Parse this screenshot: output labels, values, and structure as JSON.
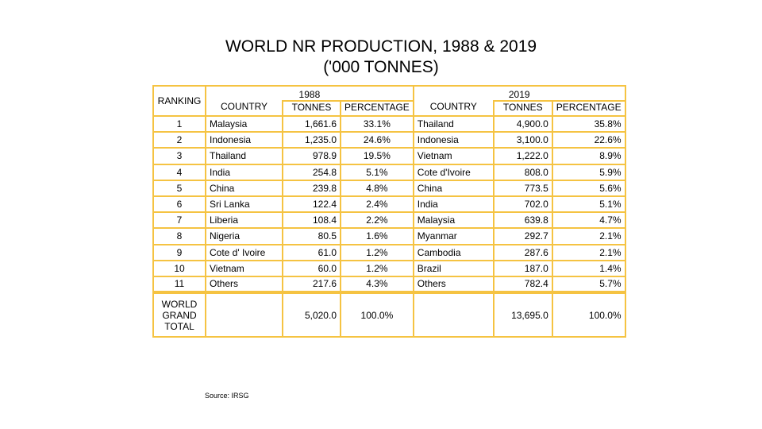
{
  "title": {
    "line1": "WORLD NR PRODUCTION, 1988 & 2019",
    "line2": "('000 TONNES)"
  },
  "headers": {
    "ranking": "RANKING",
    "year_1988": "1988",
    "year_2019": "2019",
    "country": "COUNTRY",
    "tonnes": "TONNES",
    "percentage": "PERCENTAGE"
  },
  "rows": [
    {
      "rank": "1",
      "c1988": "Malaysia",
      "t1988": "1,661.6",
      "p1988": "33.1%",
      "c2019": "Thailand",
      "t2019": "4,900.0",
      "p2019": "35.8%"
    },
    {
      "rank": "2",
      "c1988": "Indonesia",
      "t1988": "1,235.0",
      "p1988": "24.6%",
      "c2019": "Indonesia",
      "t2019": "3,100.0",
      "p2019": "22.6%"
    },
    {
      "rank": "3",
      "c1988": "Thailand",
      "t1988": "978.9",
      "p1988": "19.5%",
      "c2019": "Vietnam",
      "t2019": "1,222.0",
      "p2019": "8.9%"
    },
    {
      "rank": "4",
      "c1988": "India",
      "t1988": "254.8",
      "p1988": "5.1%",
      "c2019": "Cote d'Ivoire",
      "t2019": "808.0",
      "p2019": "5.9%"
    },
    {
      "rank": "5",
      "c1988": "China",
      "t1988": "239.8",
      "p1988": "4.8%",
      "c2019": "China",
      "t2019": "773.5",
      "p2019": "5.6%"
    },
    {
      "rank": "6",
      "c1988": "Sri Lanka",
      "t1988": "122.4",
      "p1988": "2.4%",
      "c2019": "India",
      "t2019": "702.0",
      "p2019": "5.1%"
    },
    {
      "rank": "7",
      "c1988": "Liberia",
      "t1988": "108.4",
      "p1988": "2.2%",
      "c2019": "Malaysia",
      "t2019": "639.8",
      "p2019": "4.7%"
    },
    {
      "rank": "8",
      "c1988": "Nigeria",
      "t1988": "80.5",
      "p1988": "1.6%",
      "c2019": "Myanmar",
      "t2019": "292.7",
      "p2019": "2.1%"
    },
    {
      "rank": "9",
      "c1988": "Cote d' Ivoire",
      "t1988": "61.0",
      "p1988": "1.2%",
      "c2019": "Cambodia",
      "t2019": "287.6",
      "p2019": "2.1%"
    },
    {
      "rank": "10",
      "c1988": "Vietnam",
      "t1988": "60.0",
      "p1988": "1.2%",
      "c2019": "Brazil",
      "t2019": "187.0",
      "p2019": "1.4%"
    },
    {
      "rank": "11",
      "c1988": "Others",
      "t1988": "217.6",
      "p1988": "4.3%",
      "c2019": "Others",
      "t2019": "782.4",
      "p2019": "5.7%"
    }
  ],
  "total": {
    "label_line1": "WORLD",
    "label_line2": "GRAND",
    "label_line3": "TOTAL",
    "t1988": "5,020.0",
    "p1988": "100.0%",
    "t2019": "13,695.0",
    "p2019": "100.0%"
  },
  "source": "Source: IRSG",
  "colors": {
    "border": "#f5c342",
    "background": "#ffffff",
    "text": "#000000"
  }
}
